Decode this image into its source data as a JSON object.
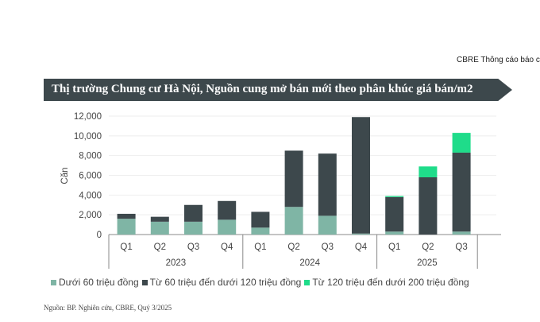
{
  "header": {
    "text": "CBRE Thông cáo báo c"
  },
  "chart_data": {
    "type": "bar",
    "stacked": true,
    "title": "Thị trường Chung cư Hà Nội, Nguồn cung mở bán mới theo phân khúc giá bán/m2",
    "ylabel": "Căn",
    "ylim": [
      0,
      12000
    ],
    "yticks": [
      "0",
      "2,000",
      "4,000",
      "6,000",
      "8,000",
      "10,000",
      "12,000"
    ],
    "grid": true,
    "legend_position": "bottom",
    "groups": [
      {
        "label": "2023",
        "categories": [
          "Q1",
          "Q2",
          "Q3",
          "Q4"
        ]
      },
      {
        "label": "2024",
        "categories": [
          "Q1",
          "Q2",
          "Q3",
          "Q4"
        ]
      },
      {
        "label": "2025",
        "categories": [
          "Q1",
          "Q2",
          "Q3"
        ]
      }
    ],
    "series": [
      {
        "name": "Dưới 60 triệu đồng",
        "color": "#7fb5a5",
        "values": [
          1600,
          1300,
          1300,
          1500,
          700,
          2800,
          1900,
          100,
          300,
          0,
          300
        ]
      },
      {
        "name": "Từ 60 triệu đến dưới 120 triệu đồng",
        "color": "#3d484c",
        "values": [
          500,
          500,
          1700,
          1900,
          1600,
          5700,
          6300,
          11800,
          3500,
          5800,
          8000
        ]
      },
      {
        "name": "Từ 120 triệu đến dưới 200 triệu đồng",
        "color": "#1fdc8a",
        "values": [
          0,
          0,
          0,
          0,
          0,
          0,
          0,
          0,
          100,
          1100,
          2000
        ]
      }
    ]
  },
  "source": "Nguồn: BP. Nghiên cứu, CBRE, Quý 3/2025"
}
